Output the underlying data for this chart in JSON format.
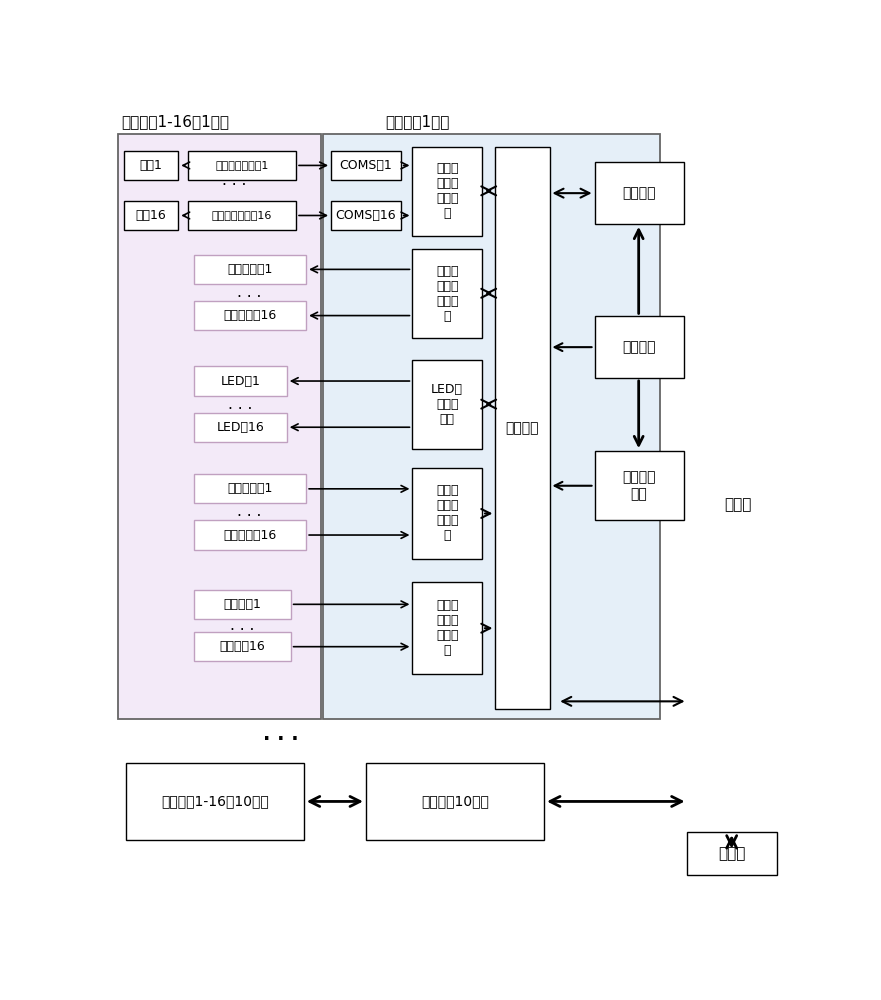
{
  "bg_color": "#ffffff",
  "left_bg_color": "#f5eef8",
  "mid_bg_color": "#eaf2fb",
  "box_face": "#ffffff",
  "box_edge": "#000000",
  "pink_edge": "#c39bd3",
  "title1": "电机总成1-16（1层）",
  "title2": "主控板（1层）",
  "label_dianji1": "电机1",
  "label_dianji16": "电机16",
  "label_ctrl1": "电机控制电路板1",
  "label_ctrl16": "电机控制电路板16",
  "label_coms1": "COMS管1",
  "label_coms16": "COMS管16",
  "label_mux_motor": "电机控\n制多路\n选择单\n元",
  "label_ir_emit1": "红外发射器1",
  "label_ir_emit16": "红外发射器16",
  "label_mux_iremit": "红外发\n射多路\n选择单\n元",
  "label_led1": "LED灯1",
  "label_led16": "LED灯16",
  "label_mux_led": "LED多\n路选择\n单元",
  "label_ir_recv1": "红外接收器1",
  "label_ir_recv16": "红外接收器16",
  "label_mux_irrecv": "红外接\n收多路\n选择单\n元",
  "label_micro1": "微动开关1",
  "label_micro16": "微动开关16",
  "label_mux_micro": "微动开\n关多路\n选择单\n元",
  "label_cpu": "微处理器",
  "label_comm": "通讯模块",
  "label_power": "电源模块",
  "label_addr": "地址拨码\n开关",
  "label_relay": "转接板",
  "label_motor10": "电机总成1-16（10层）",
  "label_main10": "主控板（10层）",
  "label_host": "上位机",
  "dots": "· · ·"
}
